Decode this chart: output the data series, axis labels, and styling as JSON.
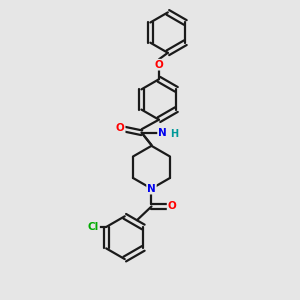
{
  "background_color": "#e6e6e6",
  "bond_color": "#1a1a1a",
  "atom_colors": {
    "O": "#ff0000",
    "N": "#0000ee",
    "Cl": "#00aa00",
    "H": "#009999",
    "C": "#1a1a1a"
  },
  "figsize": [
    3.0,
    3.0
  ],
  "dpi": 100,
  "lw": 1.6,
  "ring_r": 0.68
}
